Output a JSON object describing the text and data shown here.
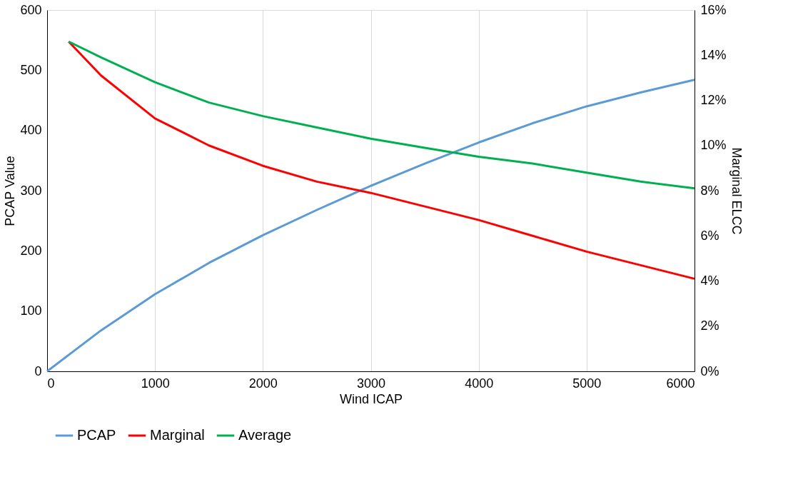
{
  "chart_data": {
    "type": "line",
    "xlabel": "Wind ICAP",
    "ylabel": "PCAP Value",
    "y2label": "Marginal ELCC",
    "xlim": [
      0,
      6000
    ],
    "xticks": [
      0,
      1000,
      2000,
      3000,
      4000,
      5000,
      6000
    ],
    "ylim": [
      0,
      600
    ],
    "yticks": [
      0,
      100,
      200,
      300,
      400,
      500,
      600
    ],
    "y2lim": [
      0,
      16
    ],
    "y2ticks": [
      {
        "value": 0,
        "label": "0%"
      },
      {
        "value": 2,
        "label": "2%"
      },
      {
        "value": 4,
        "label": "4%"
      },
      {
        "value": 6,
        "label": "6%"
      },
      {
        "value": 8,
        "label": "8%"
      },
      {
        "value": 10,
        "label": "10%"
      },
      {
        "value": 12,
        "label": "12%"
      },
      {
        "value": 14,
        "label": "14%"
      },
      {
        "value": 16,
        "label": "16%"
      }
    ],
    "grid": "x",
    "legend": "bottom",
    "marker": "none",
    "line_style": "solid",
    "series": [
      {
        "name": "PCAP",
        "color": "#5b9bd5",
        "x": [
          0,
          500,
          1000,
          1500,
          2000,
          2500,
          3000,
          3500,
          4000,
          4500,
          5000,
          5500,
          6000
        ],
        "values": [
          0,
          68,
          128,
          180,
          226,
          268,
          308,
          345,
          380,
          412,
          440,
          463,
          484
        ]
      },
      {
        "name": "Marginal",
        "color": "#ff0000",
        "axis": "y2",
        "x": [
          200,
          500,
          1000,
          1500,
          2000,
          2500,
          3000,
          3500,
          4000,
          4500,
          5000,
          5500,
          6000
        ],
        "values": [
          14.6,
          13.1,
          11.2,
          10.0,
          9.1,
          8.4,
          7.9,
          7.3,
          6.7,
          6.0,
          5.3,
          4.7,
          4.1
        ]
      },
      {
        "name": "Average",
        "color": "#00b050",
        "axis": "y2",
        "x": [
          200,
          500,
          1000,
          1500,
          2000,
          2500,
          3000,
          3500,
          4000,
          4500,
          5000,
          5500,
          6000
        ],
        "values": [
          14.6,
          13.9,
          12.8,
          11.9,
          11.3,
          10.8,
          10.3,
          9.9,
          9.5,
          9.2,
          8.8,
          8.4,
          8.1
        ]
      }
    ]
  }
}
